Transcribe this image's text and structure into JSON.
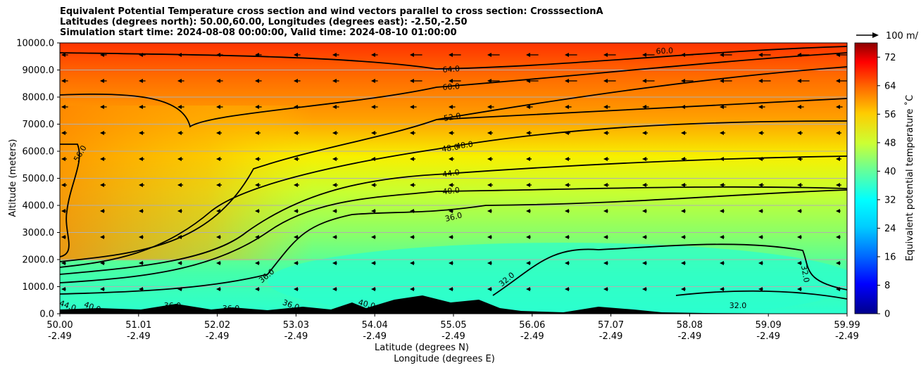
{
  "chart_data": {
    "type": "heatmap",
    "title_lines": [
      "Equivalent Potential Temperature cross section and wind vectors parallel to cross section: CrosssectionA",
      "Latitudes (degrees north): 50.00,60.00, Longitudes (degrees east): -2.50,-2.50",
      "Simulation start time: 2024-08-08 00:00:00, Valid time: 2024-08-10 01:00:00"
    ],
    "ylabel": "Altitude (meters)",
    "xlabel_lines": [
      "Latitude (degrees N)",
      "Longitude (degrees E)"
    ],
    "ylim": [
      0,
      10000
    ],
    "y_ticks": [
      "0.0",
      "1000.0",
      "2000.0",
      "3000.0",
      "4000.0",
      "5000.0",
      "6000.0",
      "7000.0",
      "8000.0",
      "9000.0",
      "10000.0"
    ],
    "x_ticks": [
      {
        "lat": "50.00",
        "lon": "-2.49"
      },
      {
        "lat": "51.01",
        "lon": "-2.49"
      },
      {
        "lat": "52.02",
        "lon": "-2.49"
      },
      {
        "lat": "53.03",
        "lon": "-2.49"
      },
      {
        "lat": "54.04",
        "lon": "-2.49"
      },
      {
        "lat": "55.05",
        "lon": "-2.49"
      },
      {
        "lat": "56.06",
        "lon": "-2.49"
      },
      {
        "lat": "57.07",
        "lon": "-2.49"
      },
      {
        "lat": "58.08",
        "lon": "-2.49"
      },
      {
        "lat": "59.09",
        "lon": "-2.49"
      },
      {
        "lat": "59.99",
        "lon": "-2.49"
      }
    ],
    "colorbar": {
      "label": "Equivalent potential temperature $^\\circ$C",
      "label_display": "Equivalent potential temperature ˚C",
      "ticks": [
        "0",
        "8",
        "16",
        "24",
        "32",
        "40",
        "48",
        "56",
        "64",
        "72"
      ],
      "range": [
        0,
        76
      ]
    },
    "quiver_key": "100 m/",
    "contour_levels": [
      "32.0",
      "36.0",
      "40.0",
      "44.0",
      "48.0",
      "52.0",
      "56.0",
      "60.0",
      "64.0"
    ],
    "grid": true,
    "colors": {
      "background_field_high": "#ff3300",
      "background_field_mid": "#f0ff00",
      "background_field_low": "#33ffcc",
      "terrain": "#000000"
    }
  }
}
